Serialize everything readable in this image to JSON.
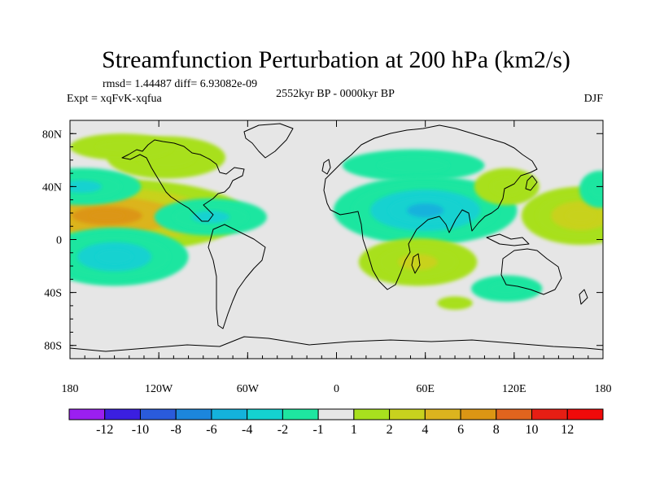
{
  "chart_data": {
    "type": "heatmap",
    "title": "Streamfunction Perturbation at 200 hPa (km2/s)",
    "stats_text": "rmsd= 1.44487 diff= 6.93082e-09",
    "experiment_text": "Expt = xqFvK-xqfua",
    "period_text": "2552kyr BP - 0000kyr BP",
    "season_text": "DJF",
    "x_axis": {
      "range": [
        -180,
        180
      ],
      "ticks": [
        {
          "value": -180,
          "label": "180"
        },
        {
          "value": -120,
          "label": "120W"
        },
        {
          "value": -60,
          "label": "60W"
        },
        {
          "value": 0,
          "label": "0"
        },
        {
          "value": 60,
          "label": "60E"
        },
        {
          "value": 120,
          "label": "120E"
        },
        {
          "value": 180,
          "label": "180"
        }
      ]
    },
    "y_axis": {
      "range": [
        -90,
        90
      ],
      "ticks": [
        {
          "value": 80,
          "label": "80N"
        },
        {
          "value": 40,
          "label": "40N"
        },
        {
          "value": 0,
          "label": "0"
        },
        {
          "value": -40,
          "label": "40S"
        },
        {
          "value": -80,
          "label": "80S"
        }
      ]
    },
    "levels": [
      -12,
      -10,
      -8,
      -6,
      -4,
      -2,
      -1,
      1,
      2,
      4,
      6,
      8,
      10,
      12
    ],
    "colorbar_labels": [
      "-12",
      "-10",
      "-8",
      "-6",
      "-4",
      "-2",
      "-1",
      "1",
      "2",
      "4",
      "6",
      "8",
      "10",
      "12"
    ],
    "colorbar_colors": [
      "#9b1ff0",
      "#3b1fe0",
      "#2a5bdc",
      "#1c86dc",
      "#14b2dc",
      "#14d2d0",
      "#1ee6a0",
      "#e6e6e6",
      "#a8e01e",
      "#c8d21e",
      "#dcb41e",
      "#dc9614",
      "#e0641e",
      "#e61e14",
      "#f00a0a"
    ],
    "anomalies": [
      {
        "region": "north-pacific-east",
        "lon": -155,
        "lat": 18,
        "peak": 7.5
      },
      {
        "region": "north-pacific-west",
        "lon": 165,
        "lat": 18,
        "peak": 3.5
      },
      {
        "region": "north-pacific-north",
        "lon": -172,
        "lat": 40,
        "peak": -3
      },
      {
        "region": "north-pacific-northwest",
        "lon": 178,
        "lat": 38,
        "peak": -2
      },
      {
        "region": "north-america-west",
        "lon": -115,
        "lat": 62,
        "peak": 1.5
      },
      {
        "region": "canada",
        "lon": -145,
        "lat": 70,
        "peak": 1.2
      },
      {
        "region": "south-pacific",
        "lon": -150,
        "lat": -13,
        "peak": -4
      },
      {
        "region": "caribbean",
        "lon": -85,
        "lat": 17,
        "peak": -2.5
      },
      {
        "region": "siberia",
        "lon": 52,
        "lat": 56,
        "peak": -1.8
      },
      {
        "region": "south-asia",
        "lon": 60,
        "lat": 22,
        "peak": -5
      },
      {
        "region": "east-asia",
        "lon": 115,
        "lat": 40,
        "peak": 1.5
      },
      {
        "region": "southern-africa",
        "lon": 55,
        "lat": -17,
        "peak": 2.8
      },
      {
        "region": "south-indian-ocean-east",
        "lon": 115,
        "lat": -37,
        "peak": -1.6
      },
      {
        "region": "south-indian-ocean",
        "lon": 80,
        "lat": -48,
        "peak": 1.5
      }
    ]
  }
}
